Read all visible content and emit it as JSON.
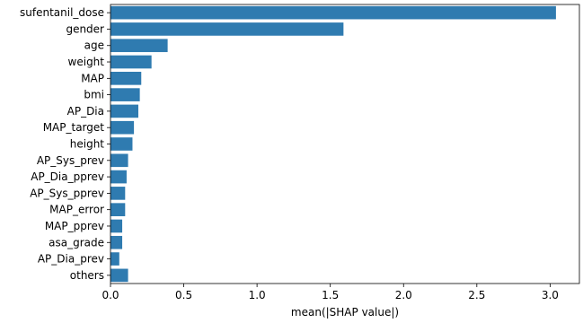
{
  "chart_data": {
    "type": "bar",
    "orientation": "horizontal",
    "categories": [
      "sufentanil_dose",
      "gender",
      "age",
      "weight",
      "MAP",
      "bmi",
      "AP_Dia",
      "MAP_target",
      "height",
      "AP_Sys_prev",
      "AP_Dia_pprev",
      "AP_Sys_pprev",
      "MAP_error",
      "MAP_pprev",
      "asa_grade",
      "AP_Dia_prev",
      "others"
    ],
    "values": [
      3.04,
      1.59,
      0.39,
      0.28,
      0.21,
      0.2,
      0.19,
      0.16,
      0.15,
      0.12,
      0.11,
      0.1,
      0.1,
      0.08,
      0.08,
      0.06,
      0.12
    ],
    "xlabel": "mean(|SHAP value|)",
    "ylabel": "",
    "xlim": [
      0,
      3.2
    ],
    "xticks": [
      "0.0",
      "0.5",
      "1.0",
      "1.5",
      "2.0",
      "2.5",
      "3.0"
    ],
    "grid": false,
    "legend": "none",
    "bar_color": "#2f7bb0"
  }
}
